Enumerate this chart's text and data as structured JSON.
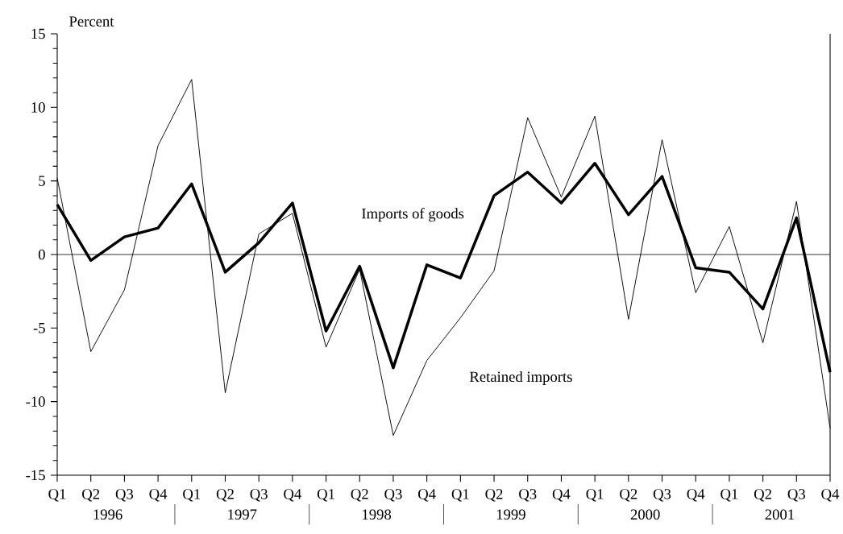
{
  "chart_data": {
    "type": "line",
    "ylabel": "Percent",
    "categories": [
      "Q1",
      "Q2",
      "Q3",
      "Q4",
      "Q1",
      "Q2",
      "Q3",
      "Q4",
      "Q1",
      "Q2",
      "Q3",
      "Q4",
      "Q1",
      "Q2",
      "Q3",
      "Q4",
      "Q1",
      "Q2",
      "Q3",
      "Q4",
      "Q1",
      "Q2",
      "Q3",
      "Q4"
    ],
    "annotations": [
      "1996",
      "1997",
      "1998",
      "1999",
      "2000",
      "2001"
    ],
    "series": [
      {
        "name": "Imports of goods",
        "color": "#000000",
        "values": [
          3.4,
          -0.4,
          1.2,
          1.8,
          4.8,
          -1.2,
          0.8,
          3.5,
          -5.2,
          -0.8,
          -7.7,
          -0.7,
          -1.6,
          4.0,
          5.6,
          3.5,
          6.2,
          2.7,
          5.3,
          -0.9,
          -1.2,
          -3.7,
          2.5,
          -8.0
        ]
      },
      {
        "name": "Retained imports",
        "color": "#000000",
        "values": [
          5.2,
          -6.6,
          -2.4,
          7.4,
          11.9,
          -9.4,
          1.4,
          2.8,
          -6.3,
          -1.0,
          -12.3,
          -7.2,
          -4.3,
          -1.1,
          9.3,
          3.9,
          9.4,
          -4.4,
          7.8,
          -2.6,
          1.9,
          -6.0,
          3.6,
          -11.8
        ]
      }
    ],
    "ylim": [
      -15,
      15
    ],
    "yticks": [
      -15,
      -10,
      -5,
      0,
      5,
      10,
      15
    ],
    "ref_lines": [
      {
        "axis": "y",
        "value": 0
      }
    ],
    "grid": false,
    "legend": false,
    "marker": "none",
    "line_style": "solid"
  }
}
